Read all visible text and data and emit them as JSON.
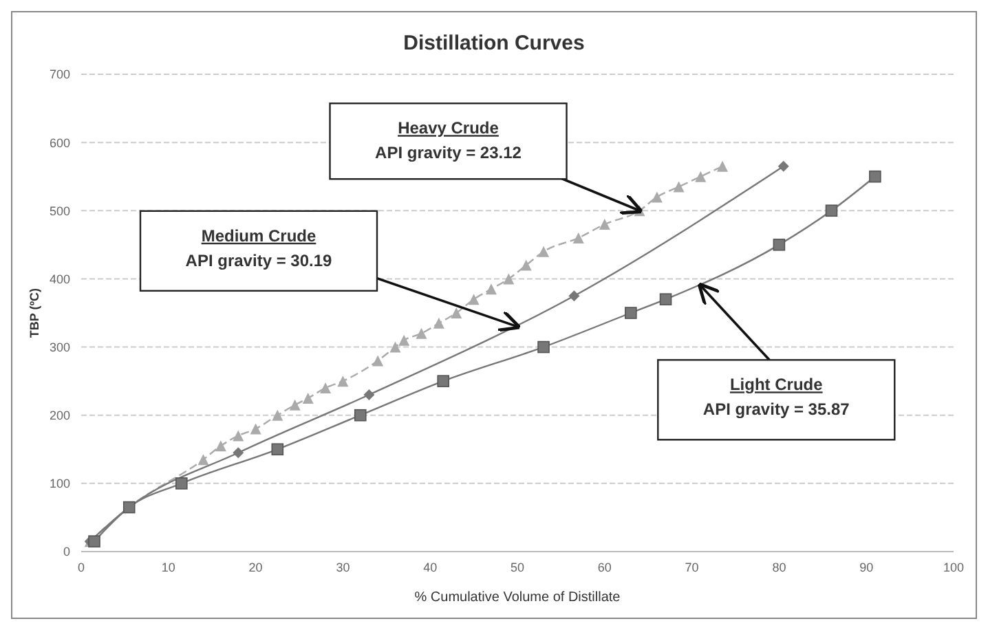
{
  "chart_data": {
    "type": "line",
    "title": "Distillation Curves",
    "xlabel": "% Cumulative Volume of Distillate",
    "ylabel": "TBP (ºC)",
    "xlim": [
      0,
      100
    ],
    "xticks": [
      0,
      10,
      20,
      30,
      40,
      50,
      60,
      70,
      80,
      90,
      100
    ],
    "ylim": [
      0,
      700
    ],
    "yticks": [
      0,
      100,
      200,
      300,
      400,
      500,
      600,
      700
    ],
    "grid": "y",
    "legend": false,
    "series": [
      {
        "color": "#aaaaaa",
        "marker": "triangle",
        "line_style": "dashed",
        "x": [
          1,
          5.5,
          14,
          16,
          18,
          20,
          22.5,
          24.5,
          26,
          28,
          30,
          34,
          36,
          37,
          39,
          41,
          43,
          45,
          47,
          49,
          51,
          53,
          57,
          60,
          64,
          66,
          68.5,
          71,
          73.5
        ],
        "values": [
          15,
          65,
          135,
          155,
          170,
          180,
          200,
          215,
          225,
          240,
          250,
          280,
          300,
          310,
          320,
          335,
          350,
          370,
          385,
          400,
          420,
          440,
          460,
          480,
          500,
          520,
          535,
          550,
          565
        ]
      },
      {
        "color": "#777777",
        "marker": "diamond",
        "line_style": "solid",
        "x": [
          1,
          5.5,
          18,
          33,
          56.5,
          80.5
        ],
        "values": [
          15,
          65,
          145,
          230,
          375,
          565
        ]
      },
      {
        "color": "#777777",
        "marker": "square",
        "line_style": "solid",
        "x": [
          1.5,
          5.5,
          11.5,
          22.5,
          32,
          41.5,
          53,
          63,
          67,
          80,
          86,
          91
        ],
        "values": [
          15,
          65,
          100,
          150,
          200,
          250,
          300,
          350,
          370,
          450,
          500,
          550
        ]
      }
    ],
    "annotations": [
      {
        "text": "Heavy Crude\nAPI gravity = 23.12",
        "x": 64,
        "y": 500
      },
      {
        "text": "Medium Crude\nAPI gravity = 30.19",
        "x": 50,
        "y": 330
      },
      {
        "text": "Light Crude\nAPI gravity = 35.87",
        "x": 71,
        "y": 390
      }
    ]
  }
}
